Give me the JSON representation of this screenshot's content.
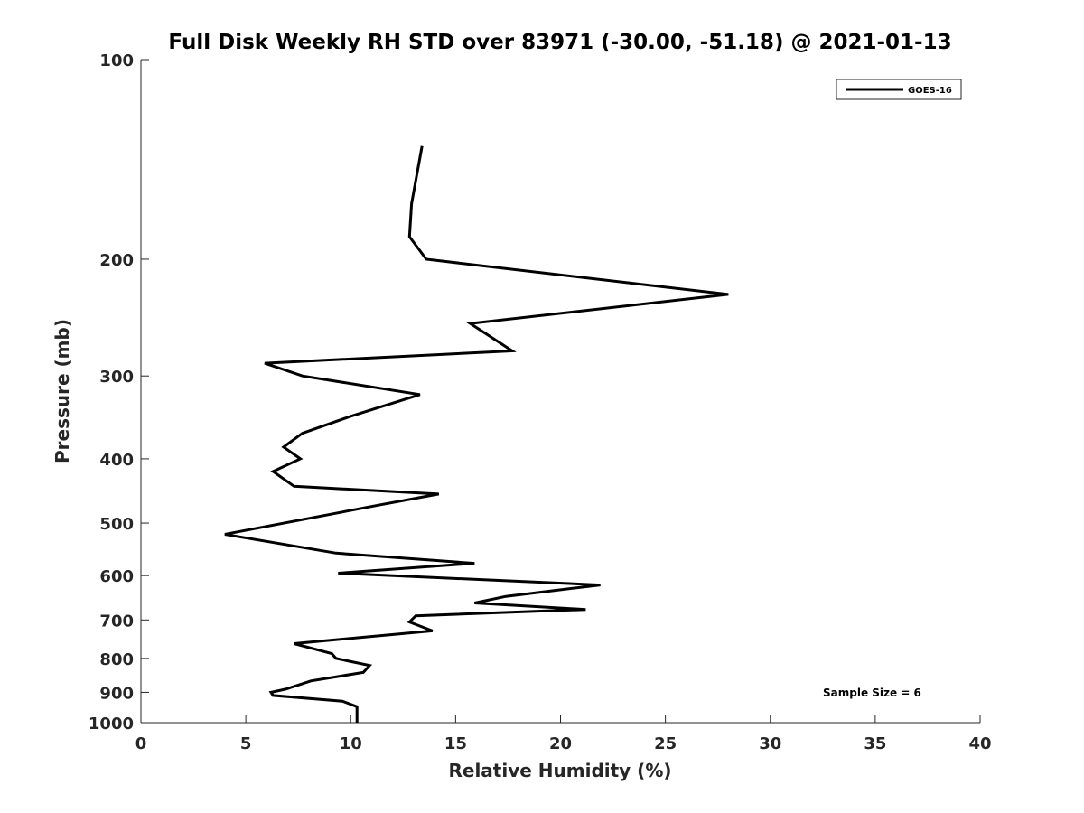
{
  "chart_data": {
    "type": "line",
    "title": "Full Disk Weekly RH STD over 83971 (-30.00, -51.18) @ 2021-01-13",
    "xlabel": "Relative Humidity (%)",
    "ylabel": "Pressure (mb)",
    "xlim": [
      0,
      40
    ],
    "ylim": [
      100,
      1000
    ],
    "yscale": "log",
    "y_reversed": true,
    "grid": false,
    "legend_placement": "top-right",
    "x_ticks": [
      "0",
      "5",
      "10",
      "15",
      "20",
      "25",
      "30",
      "35",
      "40"
    ],
    "y_ticks": [
      "100",
      "200",
      "300",
      "400",
      "500",
      "600",
      "700",
      "800",
      "900",
      "1000"
    ],
    "series": [
      {
        "name": "GOES-16",
        "color": "#000000",
        "x": [
          13.4,
          12.9,
          12.8,
          13.6,
          28.0,
          15.7,
          17.7,
          5.9,
          7.7,
          13.3,
          10.0,
          7.7,
          6.8,
          7.6,
          6.3,
          7.3,
          14.2,
          11.3,
          4.0,
          9.3,
          15.9,
          9.4,
          21.9,
          17.4,
          15.9,
          21.2,
          13.1,
          12.8,
          13.9,
          7.3,
          9.1,
          9.3,
          10.9,
          10.6,
          8.1,
          6.9,
          6.2,
          6.3,
          9.6,
          10.3,
          10.3
        ],
        "y": [
          135,
          165,
          185,
          200,
          226,
          250,
          275,
          287,
          300,
          320,
          345,
          366,
          384,
          400,
          418,
          440,
          452,
          470,
          520,
          555,
          575,
          595,
          620,
          645,
          660,
          675,
          690,
          705,
          727,
          760,
          787,
          800,
          820,
          840,
          865,
          890,
          900,
          910,
          928,
          946,
          1000
        ]
      }
    ],
    "annotations": [
      {
        "text": "Sample Size = 6"
      }
    ]
  }
}
